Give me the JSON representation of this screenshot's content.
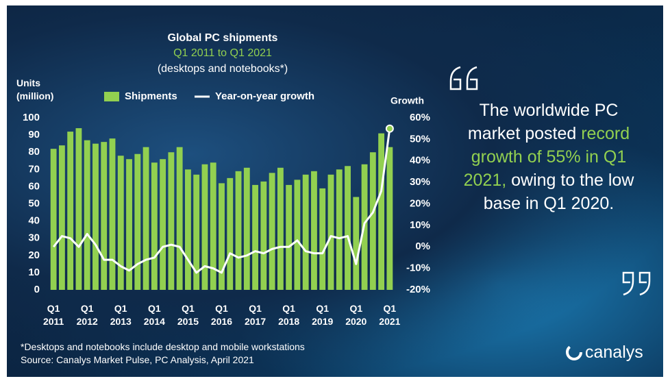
{
  "chart_data": {
    "type": "bar",
    "title": "Global PC shipments",
    "subtitle": [
      "Q1 2011 to Q1 2021",
      "(desktops and notebooks*)"
    ],
    "y_label": "Units (million)",
    "y2_label": "Growth",
    "categories": [
      "Q1 2011",
      null,
      null,
      null,
      "Q1 2012",
      null,
      null,
      null,
      "Q1 2013",
      null,
      null,
      null,
      "Q1 2014",
      null,
      null,
      null,
      "Q1 2015",
      null,
      null,
      null,
      "Q1 2016",
      null,
      null,
      null,
      "Q1 2017",
      null,
      null,
      null,
      "Q1 2018",
      null,
      null,
      null,
      "Q1 2019",
      null,
      null,
      null,
      "Q1 2020",
      null,
      null,
      null,
      "Q1 2021"
    ],
    "series": [
      {
        "name": "Shipments",
        "type": "bar",
        "color": "#92d050",
        "values": [
          82,
          84,
          92,
          94,
          87,
          85,
          86,
          88,
          78,
          76,
          79,
          83,
          74,
          76,
          80,
          83,
          70,
          67,
          73,
          74,
          62,
          65,
          69,
          71,
          61,
          63,
          68,
          71,
          61,
          64,
          67,
          69,
          59,
          67,
          70,
          72,
          54,
          73,
          80,
          91,
          83
        ]
      },
      {
        "name": "Year-on-year growth",
        "type": "line",
        "color": "#ffffff",
        "axis": "y2",
        "values": [
          0,
          5,
          4,
          0,
          6,
          1,
          -6,
          -6,
          -9,
          -11,
          -8,
          -6,
          -5,
          0,
          1,
          0,
          -6,
          -12,
          -9,
          -10,
          -12,
          -3,
          -5,
          -4,
          -2,
          -3,
          -1,
          0,
          0,
          3,
          -2,
          -3,
          -3,
          5,
          4,
          5,
          -8,
          11,
          16,
          26,
          55
        ]
      }
    ],
    "ylim": [
      0,
      100
    ],
    "yticks": [
      0,
      10,
      20,
      30,
      40,
      50,
      60,
      70,
      80,
      90,
      100
    ],
    "y2lim": [
      -20,
      60
    ],
    "y2ticks": [
      {
        "value": -20,
        "label": "-20%"
      },
      {
        "value": -10,
        "label": "-10%"
      },
      {
        "value": 0,
        "label": "0%"
      },
      {
        "value": 10,
        "label": "10%"
      },
      {
        "value": 20,
        "label": "20%"
      },
      {
        "value": 30,
        "label": "30%"
      },
      {
        "value": 40,
        "label": "40%"
      },
      {
        "value": 50,
        "label": "50%"
      },
      {
        "value": 60,
        "label": "60%"
      }
    ],
    "grid": false,
    "quote": [
      "The worldwide PC market posted ",
      "record growth of 55% in Q1 2021,",
      " owing to the low base in Q1 2020."
    ],
    "footnote": "*Desktops and notebooks include desktop and mobile workstations",
    "source": "Source: Canalys Market Pulse, PC Analysis, April 2021",
    "brand": "canalys"
  }
}
